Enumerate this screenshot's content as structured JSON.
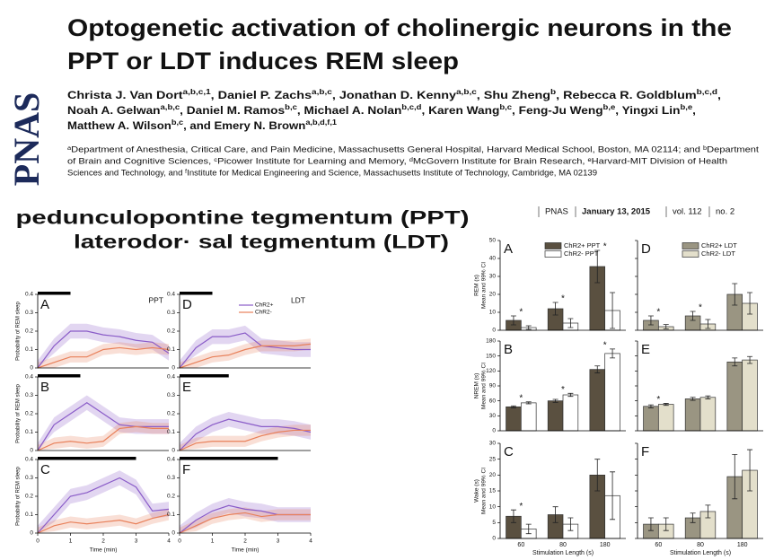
{
  "logo": "PNAS",
  "header": {
    "title": [
      "Optogenetic activation of cholinergic neurons in the",
      "PPT or LDT induces REM sleep"
    ],
    "authors": [
      [
        {
          "name": "Christa J. Van Dort",
          "sup": "a,b,c,1",
          "tail": ", "
        },
        {
          "name": "Daniel P. Zachs",
          "sup": "a,b,c",
          "tail": ", "
        },
        {
          "name": "Jonathan D. Kenny",
          "sup": "a,b,c",
          "tail": ", "
        },
        {
          "name": "Shu Zheng",
          "sup": "b",
          "tail": ", "
        },
        {
          "name": "Rebecca R. Goldblum",
          "sup": "b,c,d",
          "tail": ","
        }
      ],
      [
        {
          "name": "Noah A. Gelwan",
          "sup": "a,b,c",
          "tail": ", "
        },
        {
          "name": "Daniel M. Ramos",
          "sup": "b,c",
          "tail": ", "
        },
        {
          "name": "Michael A. Nolan",
          "sup": "b,c,d",
          "tail": ", "
        },
        {
          "name": "Karen Wang",
          "sup": "b,c",
          "tail": ", "
        },
        {
          "name": "Feng-Ju Weng",
          "sup": "b,e",
          "tail": ", "
        },
        {
          "name": "Yingxi Lin",
          "sup": "b,e",
          "tail": ","
        }
      ],
      [
        {
          "name": "Matthew A. Wilson",
          "sup": "b,c",
          "tail": ", "
        },
        {
          "name": "and Emery N. Brown",
          "sup": "a,b,d,f,1",
          "tail": ""
        }
      ]
    ],
    "affiliations": [
      "ᵃDepartment of Anesthesia, Critical Care, and Pain Medicine, Massachusetts General Hospital, Harvard Medical School, Boston, MA 02114; and ᵇDepartment",
      "of Brain and Cognitive Sciences, ᶜPicower Institute for Learning and Memory, ᵈMcGovern Institute for Brain Research, ᵉHarvard-MIT Division of Health",
      "Sciences and Technology, and ᶠInstitute for Medical Engineering and Science, Massachusetts Institute of Technology, Cambridge, MA 02139"
    ]
  },
  "journal": [
    "PNAS",
    "January 13, 2015",
    "vol. 112",
    "no. 2"
  ],
  "overlay": [
    "pedunculopontine tegmentum (PPT)",
    "laterodor· sal tegmentum (LDT)"
  ],
  "chart_data": [
    {
      "type": "line",
      "label": "A",
      "region": "PPT",
      "x": [
        0,
        0.5,
        1,
        1.5,
        2,
        2.5,
        3,
        3.5,
        4
      ],
      "stim": [
        0,
        1
      ],
      "xlim": [
        0,
        4
      ],
      "ylim": [
        0,
        0.4
      ],
      "yticks": [
        0,
        0.1,
        0.2,
        0.3,
        0.4
      ],
      "ylabel": "Probability of REM sleep",
      "series": [
        {
          "color": "#8a5cc8",
          "ci": 0.04,
          "values": [
            0,
            0.12,
            0.2,
            0.2,
            0.18,
            0.17,
            0.15,
            0.14,
            0.08
          ]
        },
        {
          "color": "#e8805a",
          "ci": 0.03,
          "values": [
            0,
            0.03,
            0.06,
            0.06,
            0.1,
            0.11,
            0.1,
            0.11,
            0.1
          ]
        }
      ]
    },
    {
      "type": "line",
      "label": "B",
      "x": [
        0,
        0.5,
        1,
        1.5,
        2,
        2.5,
        3,
        3.5,
        4
      ],
      "stim": [
        0,
        1.3
      ],
      "xlim": [
        0,
        4
      ],
      "ylim": [
        0,
        0.4
      ],
      "yticks": [
        0,
        0.1,
        0.2,
        0.3,
        0.4
      ],
      "ylabel": "Probability of REM sleep",
      "series": [
        {
          "color": "#8a5cc8",
          "ci": 0.04,
          "values": [
            0,
            0.14,
            0.2,
            0.26,
            0.2,
            0.14,
            0.13,
            0.13,
            0.13
          ]
        },
        {
          "color": "#e8805a",
          "ci": 0.03,
          "values": [
            0,
            0.04,
            0.05,
            0.04,
            0.05,
            0.12,
            0.13,
            0.12,
            0.12
          ]
        }
      ]
    },
    {
      "type": "line",
      "label": "C",
      "x": [
        0,
        0.5,
        1,
        1.5,
        2,
        2.5,
        3,
        3.5,
        4
      ],
      "stim": [
        0,
        3
      ],
      "xlim": [
        0,
        4
      ],
      "ylim": [
        0,
        0.4
      ],
      "yticks": [
        0,
        0.1,
        0.2,
        0.3,
        0.4
      ],
      "xticks": [
        0,
        1,
        2,
        3,
        4
      ],
      "xlabel": "Time (min)",
      "ylabel": "Probability of REM sleep",
      "series": [
        {
          "color": "#8a5cc8",
          "ci": 0.04,
          "values": [
            0,
            0.1,
            0.2,
            0.22,
            0.26,
            0.3,
            0.25,
            0.12,
            0.13
          ]
        },
        {
          "color": "#e8805a",
          "ci": 0.03,
          "values": [
            0,
            0.04,
            0.06,
            0.05,
            0.06,
            0.07,
            0.05,
            0.08,
            0.1
          ]
        }
      ]
    },
    {
      "type": "line",
      "label": "D",
      "region": "LDT",
      "x": [
        0,
        0.5,
        1,
        1.5,
        2,
        2.5,
        3,
        3.5,
        4
      ],
      "stim": [
        0,
        1
      ],
      "xlim": [
        0,
        4
      ],
      "ylim": [
        0,
        0.4
      ],
      "yticks": [
        0,
        0.1,
        0.2,
        0.3,
        0.4
      ],
      "series": [
        {
          "name": "ChR2+",
          "color": "#8a5cc8",
          "ci": 0.04,
          "values": [
            0,
            0.11,
            0.17,
            0.17,
            0.19,
            0.12,
            0.11,
            0.1,
            0.1
          ]
        },
        {
          "name": "ChR2-",
          "color": "#e8805a",
          "ci": 0.03,
          "values": [
            0,
            0.03,
            0.06,
            0.07,
            0.1,
            0.12,
            0.12,
            0.12,
            0.13
          ]
        }
      ]
    },
    {
      "type": "line",
      "label": "E",
      "x": [
        0,
        0.5,
        1,
        1.5,
        2,
        2.5,
        3,
        3.5,
        4
      ],
      "stim": [
        0,
        1.5
      ],
      "xlim": [
        0,
        4
      ],
      "ylim": [
        0,
        0.4
      ],
      "yticks": [
        0,
        0.1,
        0.2,
        0.3,
        0.4
      ],
      "series": [
        {
          "color": "#8a5cc8",
          "ci": 0.04,
          "values": [
            0,
            0.09,
            0.14,
            0.17,
            0.15,
            0.13,
            0.13,
            0.12,
            0.1
          ]
        },
        {
          "color": "#e8805a",
          "ci": 0.03,
          "values": [
            0,
            0.04,
            0.05,
            0.05,
            0.05,
            0.08,
            0.1,
            0.11,
            0.11
          ]
        }
      ]
    },
    {
      "type": "line",
      "label": "F",
      "x": [
        0,
        0.5,
        1,
        1.5,
        2,
        2.5,
        3,
        3.5,
        4
      ],
      "stim": [
        0,
        3
      ],
      "xlim": [
        0,
        4
      ],
      "ylim": [
        0,
        0.4
      ],
      "yticks": [
        0,
        0.1,
        0.2,
        0.3,
        0.4
      ],
      "xticks": [
        0,
        1,
        2,
        3,
        4
      ],
      "xlabel": "Time (min)",
      "series": [
        {
          "color": "#8a5cc8",
          "ci": 0.04,
          "values": [
            0,
            0.07,
            0.12,
            0.15,
            0.13,
            0.12,
            0.1,
            0.1,
            0.1
          ]
        },
        {
          "color": "#e8805a",
          "ci": 0.03,
          "values": [
            0,
            0.04,
            0.08,
            0.1,
            0.11,
            0.09,
            0.1,
            0.1,
            0.1
          ]
        }
      ]
    },
    {
      "type": "bar",
      "label": "A",
      "ylim": [
        0,
        50
      ],
      "yticks": [
        0,
        10,
        20,
        30,
        40,
        50
      ],
      "ytick_labels": true,
      "ylabel": [
        "REM (s)",
        "Mean and 99% CI"
      ],
      "series": [
        {
          "name": "ChR2+ PPT",
          "color": "#5a5040",
          "values": [
            5.5,
            12,
            35.5
          ],
          "errors": [
            2.5,
            3.5,
            9
          ]
        },
        {
          "name": "ChR2- PPT",
          "color": "#ffffff",
          "values": [
            1.5,
            4,
            11
          ],
          "errors": [
            1,
            2.5,
            10
          ]
        }
      ],
      "annotations": [
        {
          "text": "*",
          "at": 0
        },
        {
          "text": "*",
          "at": 1
        },
        {
          "text": "*",
          "at": 2
        }
      ]
    },
    {
      "type": "bar",
      "label": "B",
      "ylim": [
        0,
        180
      ],
      "yticks": [
        0,
        30,
        60,
        90,
        120,
        150,
        180
      ],
      "ytick_labels": true,
      "ylabel": [
        "NREM (s)",
        "Mean and 99% CI"
      ],
      "series": [
        {
          "color": "#5a5040",
          "values": [
            48,
            60,
            123
          ],
          "errors": [
            2,
            3,
            7
          ]
        },
        {
          "color": "#ffffff",
          "values": [
            56,
            72,
            155
          ],
          "errors": [
            2,
            3,
            9
          ]
        }
      ],
      "annotations": [
        {
          "text": "*",
          "at": 0
        },
        {
          "text": "*",
          "at": 1
        },
        {
          "text": "*",
          "at": 2
        }
      ]
    },
    {
      "type": "bar",
      "label": "C",
      "ylim": [
        0,
        30
      ],
      "yticks": [
        0,
        5,
        10,
        15,
        20,
        25,
        30
      ],
      "ytick_labels": true,
      "ylabel": [
        "Wake (s)",
        "Mean and 99% CI"
      ],
      "categories": [
        "60",
        "80",
        "180"
      ],
      "xlabel": "Stimulation Length (s)",
      "series": [
        {
          "color": "#5a5040",
          "values": [
            7,
            7.5,
            20
          ],
          "errors": [
            2,
            2.5,
            5
          ]
        },
        {
          "color": "#ffffff",
          "values": [
            3,
            4.5,
            13.5
          ],
          "errors": [
            1.5,
            2,
            7.5
          ]
        }
      ],
      "annotations": [
        {
          "text": "*",
          "at": 0
        }
      ]
    },
    {
      "type": "bar",
      "label": "D",
      "ylim": [
        0,
        50
      ],
      "yticks": [
        0,
        10,
        20,
        30,
        40,
        50
      ],
      "ytick_labels": false,
      "series": [
        {
          "name": "ChR2+ LDT",
          "color": "#9a9582",
          "values": [
            5.5,
            8,
            20
          ],
          "errors": [
            2.5,
            2.5,
            6
          ]
        },
        {
          "name": "ChR2- LDT",
          "color": "#e3dfcb",
          "values": [
            2,
            3.5,
            15
          ],
          "errors": [
            1.2,
            2.5,
            6
          ]
        }
      ],
      "annotations": [
        {
          "text": "*",
          "at": 0
        },
        {
          "text": "*",
          "at": 1
        }
      ]
    },
    {
      "type": "bar",
      "label": "E",
      "ylim": [
        0,
        180
      ],
      "yticks": [
        0,
        30,
        60,
        90,
        120,
        150,
        180
      ],
      "ytick_labels": false,
      "series": [
        {
          "color": "#9a9582",
          "values": [
            49,
            64,
            138
          ],
          "errors": [
            3,
            3,
            8
          ]
        },
        {
          "color": "#e3dfcb",
          "values": [
            53,
            67,
            142
          ],
          "errors": [
            2,
            3,
            7
          ]
        }
      ],
      "annotations": [
        {
          "text": "*",
          "at": 0
        }
      ]
    },
    {
      "type": "bar",
      "label": "F",
      "ylim": [
        0,
        30
      ],
      "yticks": [
        0,
        5,
        10,
        15,
        20,
        25,
        30
      ],
      "ytick_labels": false,
      "categories": [
        "60",
        "80",
        "180"
      ],
      "xlabel": "Stimulation Length (s)",
      "series": [
        {
          "color": "#9a9582",
          "values": [
            4.5,
            6.5,
            19.5
          ],
          "errors": [
            2,
            1.5,
            7
          ]
        },
        {
          "color": "#e3dfcb",
          "values": [
            4.5,
            8.5,
            21.5
          ],
          "errors": [
            2,
            2,
            6.5
          ]
        }
      ],
      "annotations": []
    }
  ]
}
